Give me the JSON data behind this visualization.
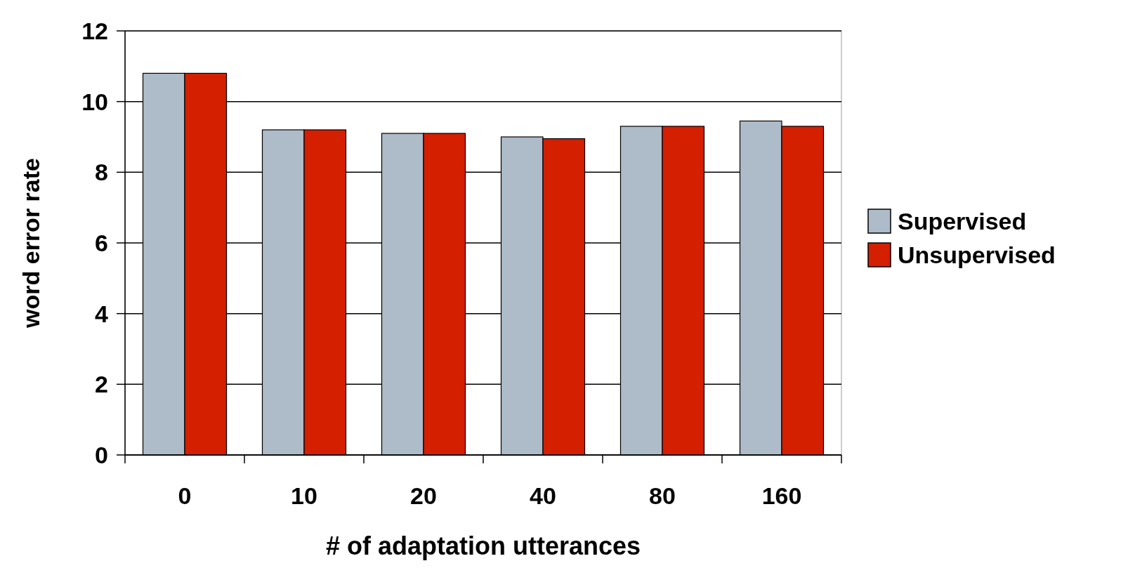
{
  "chart_data": {
    "type": "bar",
    "xlabel": "# of adaptation utterances",
    "ylabel": "word error rate",
    "categories": [
      "0",
      "10",
      "20",
      "40",
      "80",
      "160"
    ],
    "series": [
      {
        "name": "Supervised",
        "color": "#aebbc8",
        "values": [
          10.8,
          9.2,
          9.1,
          9.0,
          9.3,
          9.45
        ]
      },
      {
        "name": "Unsupervised",
        "color": "#d41f00",
        "values": [
          10.8,
          9.2,
          9.1,
          8.95,
          9.3,
          9.3
        ]
      }
    ],
    "ylim": [
      0,
      12
    ],
    "yticks": [
      0,
      2,
      4,
      6,
      8,
      10,
      12
    ],
    "grid": "y",
    "legend": "right"
  }
}
